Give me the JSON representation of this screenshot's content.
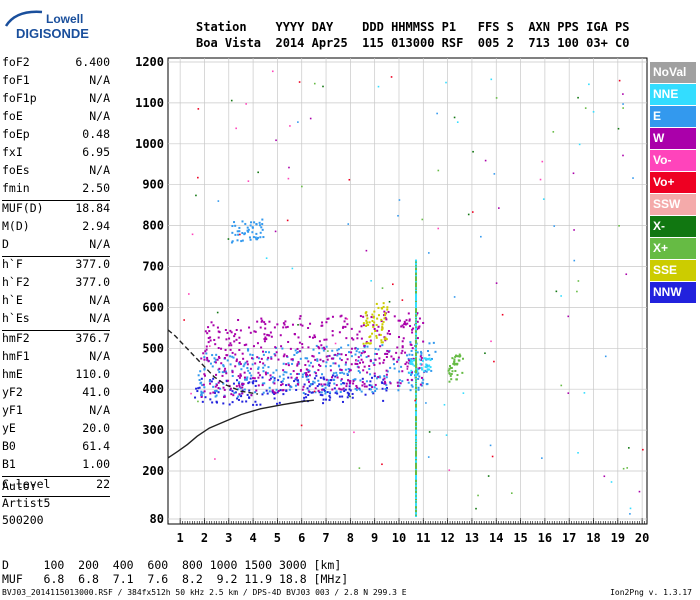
{
  "logo": {
    "line1": "Lowell",
    "line2": "DIGISONDE"
  },
  "header": {
    "row1": "Station    YYYY DAY    DDD HHMMSS P1   FFS S  AXN PPS IGA PS",
    "row2": "Boa Vista  2014 Apr25  115 013000 RSF  005 2  713 100 03+ C0"
  },
  "params": [
    {
      "k": "foF2",
      "v": "6.400",
      "sep": false
    },
    {
      "k": "foF1",
      "v": "N/A",
      "sep": false
    },
    {
      "k": "foF1p",
      "v": "N/A",
      "sep": false
    },
    {
      "k": "foE",
      "v": "N/A",
      "sep": false
    },
    {
      "k": "foEp",
      "v": "0.48",
      "sep": false
    },
    {
      "k": "fxI",
      "v": "6.95",
      "sep": false
    },
    {
      "k": "foEs",
      "v": "N/A",
      "sep": false
    },
    {
      "k": "fmin",
      "v": "2.50",
      "sep": true
    },
    {
      "k": "MUF(D)",
      "v": "18.84",
      "sep": false
    },
    {
      "k": "M(D)",
      "v": "2.94",
      "sep": false
    },
    {
      "k": "D",
      "v": "N/A",
      "sep": true
    },
    {
      "k": "h`F",
      "v": "377.0",
      "sep": false
    },
    {
      "k": "h`F2",
      "v": "377.0",
      "sep": false
    },
    {
      "k": "h`E",
      "v": "N/A",
      "sep": false
    },
    {
      "k": "h`Es",
      "v": "N/A",
      "sep": true
    },
    {
      "k": "hmF2",
      "v": "376.7",
      "sep": false
    },
    {
      "k": "hmF1",
      "v": "N/A",
      "sep": false
    },
    {
      "k": "hmE",
      "v": "110.0",
      "sep": false
    },
    {
      "k": "yF2",
      "v": "41.0",
      "sep": false
    },
    {
      "k": "yF1",
      "v": "N/A",
      "sep": false
    },
    {
      "k": "yE",
      "v": "20.0",
      "sep": false
    },
    {
      "k": "B0",
      "v": "61.4",
      "sep": false
    },
    {
      "k": "B1",
      "v": "1.00",
      "sep": true
    },
    {
      "k": "C-level",
      "v": "22",
      "sep": true
    }
  ],
  "auto": {
    "line1": "Auto:",
    "line2": "Artist5",
    "line3": "500200"
  },
  "footer": {
    "d_row": "D     100  200  400  600  800 1000 1500 3000 [km]",
    "muf_row": "MUF   6.8  6.8  7.1  7.6  8.2  9.2 11.9 18.8 [MHz]",
    "file_line": "BVJ03_2014115013000.RSF / 384fx512h 50 kHz 2.5 km / DPS-4D BVJ03 003 / 2.8 N 299.3 E",
    "version": "Ion2Png v. 1.3.17"
  },
  "legend": [
    {
      "label": "NoVal",
      "color": "#a0a0a0"
    },
    {
      "label": "NNE",
      "color": "#33ddff"
    },
    {
      "label": "E",
      "color": "#3399ee"
    },
    {
      "label": "W",
      "color": "#aa00aa"
    },
    {
      "label": "Vo-",
      "color": "#ff44bb"
    },
    {
      "label": "Vo+",
      "color": "#ee0022"
    },
    {
      "label": "SSW",
      "color": "#f4aaaa"
    },
    {
      "label": "X-",
      "color": "#117711"
    },
    {
      "label": "X+",
      "color": "#66bb44"
    },
    {
      "label": "SSE",
      "color": "#cccc00"
    },
    {
      "label": "NNW",
      "color": "#2222dd"
    }
  ],
  "chart_data": {
    "type": "scatter",
    "title": "",
    "xlabel": "",
    "ylabel": "",
    "xlim": [
      0.5,
      20.2
    ],
    "ylim": [
      80,
      1210
    ],
    "x_ticks": [
      1,
      2,
      3,
      4,
      5,
      6,
      7,
      8,
      9,
      10,
      11,
      12,
      13,
      14,
      15,
      16,
      17,
      18,
      19,
      20
    ],
    "y_ticks": [
      80,
      200,
      300,
      400,
      500,
      600,
      700,
      800,
      900,
      1000,
      1100,
      1200
    ],
    "grid": true,
    "traces": [
      {
        "name": "",
        "style": "dashed",
        "x": [
          0.5,
          0.8,
          1.2,
          1.6,
          2.0,
          2.4,
          2.9,
          3.5,
          4.2
        ],
        "y": [
          545,
          530,
          505,
          480,
          455,
          430,
          410,
          395,
          388
        ]
      },
      {
        "name": "",
        "style": "solid",
        "x": [
          0.5,
          0.9,
          1.3,
          1.7,
          2.2,
          2.8,
          3.5,
          4.3,
          5.2,
          6.0,
          6.5
        ],
        "y": [
          232,
          248,
          265,
          285,
          305,
          320,
          338,
          352,
          362,
          370,
          373
        ]
      }
    ],
    "echo_regions": [
      {
        "color_key": "NNW",
        "x": [
          1.5,
          9.5
        ],
        "y": [
          360,
          440
        ]
      },
      {
        "color_key": "E",
        "x": [
          1.7,
          11.5
        ],
        "y": [
          380,
          520
        ]
      },
      {
        "color_key": "W",
        "x": [
          1.8,
          11.0
        ],
        "y": [
          380,
          600
        ]
      },
      {
        "color_key": "SSE",
        "x": [
          8.5,
          9.5
        ],
        "y": [
          500,
          620
        ]
      },
      {
        "color_key": "X+",
        "x": [
          12.0,
          12.6
        ],
        "y": [
          420,
          490
        ]
      },
      {
        "color_key": "NNE",
        "x": [
          10.4,
          11.3
        ],
        "y": [
          440,
          480
        ]
      },
      {
        "color_key": "E",
        "x": [
          3.0,
          4.4
        ],
        "y": [
          760,
          820
        ]
      }
    ]
  }
}
